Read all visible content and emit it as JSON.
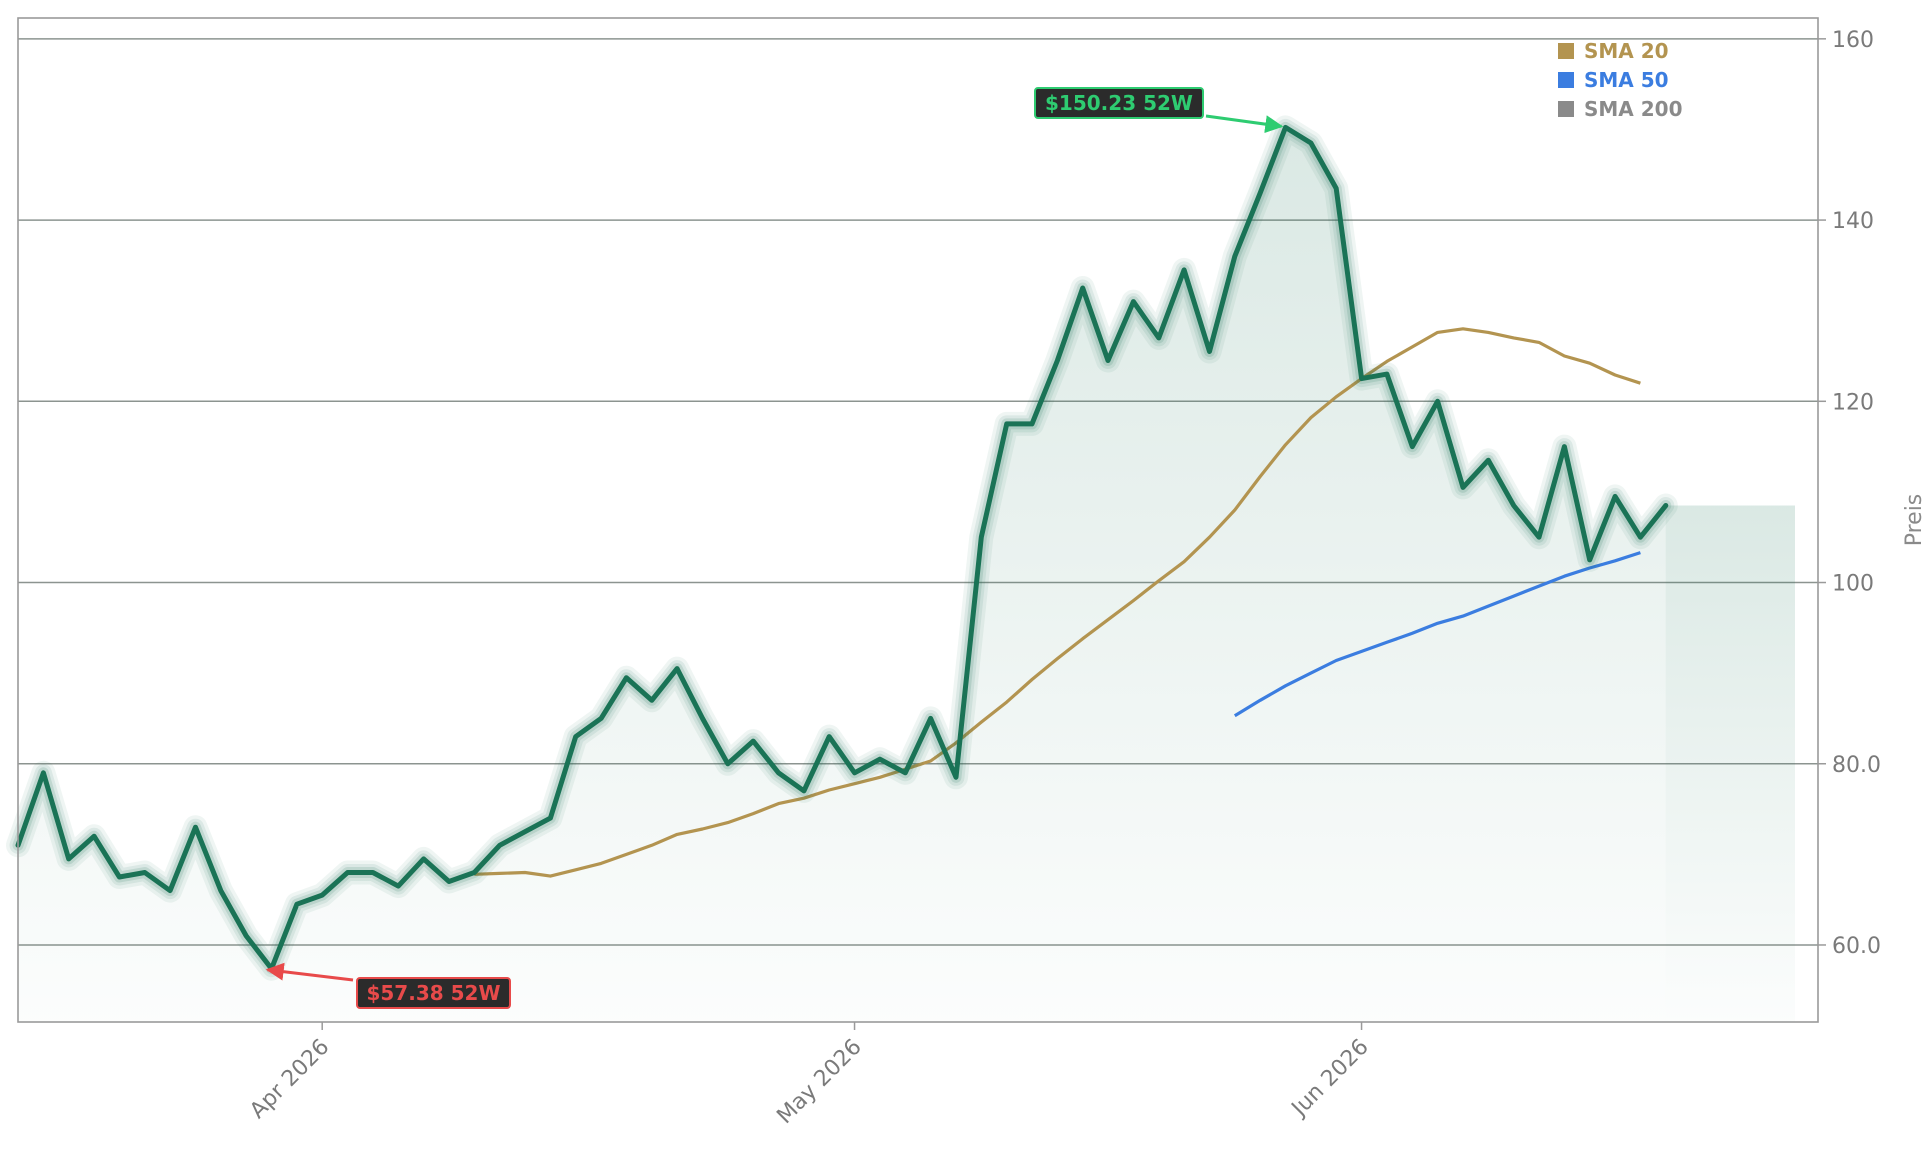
{
  "chart_data": {
    "type": "line",
    "ylabel": "Preis",
    "xlabel": "",
    "ylim": [
      51.5,
      162.3
    ],
    "yticks": [
      {
        "value": 60,
        "label": "60.0"
      },
      {
        "value": 80,
        "label": "80.0"
      },
      {
        "value": 100,
        "label": "100"
      },
      {
        "value": 120,
        "label": "120"
      },
      {
        "value": 140,
        "label": "140"
      },
      {
        "value": 160,
        "label": "160"
      }
    ],
    "xticks": [
      {
        "index": 12,
        "label": "Apr 2026"
      },
      {
        "index": 33,
        "label": "May 2026"
      },
      {
        "index": 53,
        "label": "Jun 2026"
      }
    ],
    "grid": true,
    "legend_position": "top-right",
    "price": {
      "name": "Price",
      "color": "#1a7356",
      "values": [
        71.0,
        79.0,
        69.5,
        72.0,
        67.5,
        68.0,
        66.0,
        73.0,
        66.0,
        61.0,
        57.38,
        64.5,
        65.5,
        68.0,
        68.0,
        66.5,
        69.5,
        67.0,
        68.0,
        71.0,
        72.5,
        74.0,
        83.0,
        85.0,
        89.5,
        87.0,
        90.5,
        85.0,
        80.0,
        82.5,
        79.0,
        77.0,
        83.0,
        79.0,
        80.5,
        79.0,
        85.0,
        78.5,
        105.0,
        117.5,
        117.5,
        124.5,
        132.5,
        124.5,
        131.0,
        127.0,
        134.5,
        125.5,
        136.0,
        143.0,
        150.23,
        148.5,
        143.5,
        122.5,
        123.0,
        115.0,
        120.0,
        110.5,
        113.5,
        108.5,
        105.0,
        115.0,
        102.5,
        109.5,
        105.0,
        108.5
      ]
    },
    "series": [
      {
        "name": "SMA 20",
        "color": "#b39450",
        "start_index": 18,
        "values": [
          67.8,
          67.9,
          68.0,
          67.6,
          68.3,
          69.0,
          70.0,
          71.0,
          72.2,
          72.8,
          73.5,
          74.5,
          75.6,
          76.2,
          77.1,
          77.8,
          78.5,
          79.4,
          80.3,
          82.3,
          84.6,
          86.8,
          89.3,
          91.6,
          93.8,
          95.9,
          98.0,
          100.2,
          102.3,
          105.0,
          108.0,
          111.7,
          115.2,
          118.2,
          120.5,
          122.5,
          124.4,
          126.0,
          127.6,
          128.0,
          127.6,
          127.0,
          126.5,
          125.0,
          124.2,
          122.9,
          122.0
        ]
      },
      {
        "name": "SMA 50",
        "color": "#3b7de0",
        "start_index": 48,
        "values": [
          85.3,
          87.0,
          88.6,
          90.0,
          91.4,
          92.4,
          93.4,
          94.4,
          95.5,
          96.3,
          97.4,
          98.5,
          99.6,
          100.7,
          101.6,
          102.4,
          103.3
        ]
      },
      {
        "name": "SMA 200",
        "color": "#8a8a8a",
        "start_index": 0,
        "values": []
      }
    ],
    "annotations": [
      {
        "label": "$150.23 52W",
        "index": 50,
        "value": 150.23,
        "color": "#2ecc71",
        "text_color": "#2ecc71"
      },
      {
        "label": "$57.38 52W",
        "index": 10,
        "value": 57.38,
        "color": "#e84a4a",
        "text_color": "#e84a4a"
      }
    ],
    "last_value_band": 108.5
  }
}
